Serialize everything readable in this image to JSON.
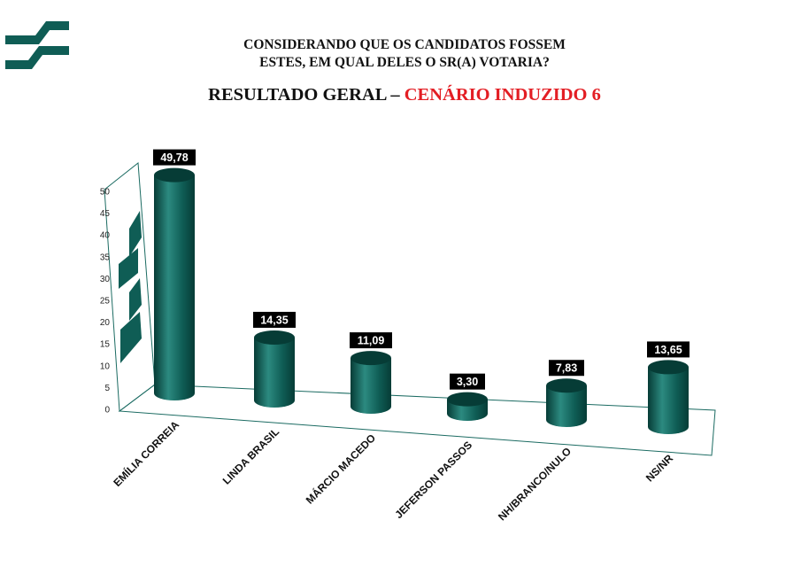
{
  "header": {
    "title_line1": "CONSIDERANDO QUE OS CANDIDATOS FOSSEM",
    "title_line2": "ESTES, EM QUAL DELES O SR(A) VOTARIA?",
    "subtitle_prefix": "RESULTADO GERAL – ",
    "subtitle_accent": "CENÁRIO INDUZIDO 6"
  },
  "colors": {
    "bar": "#0f5d55",
    "bar_dark": "#063c36",
    "bar_light": "#2c8a80",
    "accent": "#e31e24",
    "label_bg": "#000000",
    "logo": "#0f5d55"
  },
  "logo": {
    "icon": "brand-stripes-logo"
  },
  "chart_data": {
    "type": "bar",
    "style": "3d-cylinder",
    "title": "RESULTADO GERAL – CENÁRIO INDUZIDO 6",
    "categories": [
      "EMÍLIA CORREIA",
      "LINDA BRASIL",
      "MÁRCIO MACEDO",
      "JEFERSON PASSOS",
      "NH/BRANCO/NULO",
      "NS/NR"
    ],
    "values": [
      49.78,
      14.35,
      11.09,
      3.3,
      7.83,
      13.65
    ],
    "value_labels": [
      "49,78",
      "14,35",
      "11,09",
      "3,30",
      "7,83",
      "13,65"
    ],
    "ylim": [
      0,
      50
    ],
    "yticks": [
      "0",
      "5",
      "10",
      "15",
      "20",
      "25",
      "30",
      "35",
      "40",
      "45",
      "50"
    ],
    "grid": false,
    "legend": "none"
  }
}
